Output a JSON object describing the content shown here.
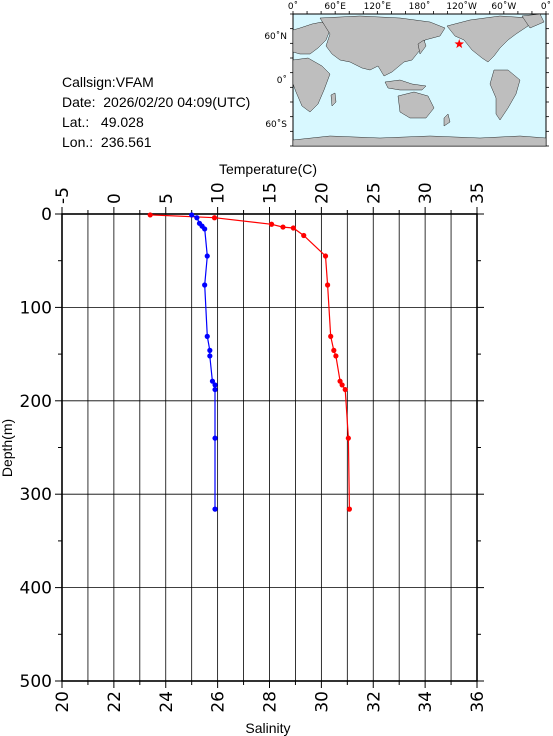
{
  "station": {
    "callsign_label": "Callsign:",
    "callsign": "VFAM",
    "date_label": "Date:",
    "date": "2026/02/20 04:09(UTC)",
    "lat_label": "Lat.:",
    "lat": "49.028",
    "lon_label": "Lon.:",
    "lon": "236.561"
  },
  "map": {
    "lon_labels": [
      "0˚",
      "60˚E",
      "120˚E",
      "180˚",
      "120˚W",
      "60˚W",
      "0˚"
    ],
    "lat_labels": [
      "60˚N",
      "0˚",
      "60˚S"
    ],
    "ocean_color": "#d8f8ff",
    "land_color": "#bebebe",
    "marker_icon": "star-icon",
    "marker_color": "#ff0000",
    "marker_lat": 49.028,
    "marker_lon": 236.561
  },
  "chart_data": {
    "type": "line",
    "ylabel": "Depth(m)",
    "x_top_label": "Temperature(C)",
    "x_bottom_label": "Salinity",
    "ylim": [
      0,
      500
    ],
    "y_ticks": [
      0,
      100,
      200,
      300,
      400,
      500
    ],
    "temp_lim": [
      -5,
      35
    ],
    "temp_ticks": [
      -5,
      0,
      5,
      10,
      15,
      20,
      25,
      30,
      35
    ],
    "sal_lim": [
      20,
      36
    ],
    "sal_ticks": [
      20,
      22,
      24,
      26,
      28,
      30,
      32,
      34,
      36
    ],
    "grid": true,
    "series": [
      {
        "axis": "temperature",
        "color": "#ff0000",
        "points": [
          [
            3.5,
            1
          ],
          [
            9.7,
            4
          ],
          [
            15.2,
            11
          ],
          [
            16.3,
            14
          ],
          [
            17.3,
            15
          ],
          [
            18.3,
            23
          ],
          [
            20.4,
            45
          ],
          [
            20.6,
            76
          ],
          [
            20.9,
            131
          ],
          [
            21.2,
            146
          ],
          [
            21.4,
            152
          ],
          [
            21.8,
            179
          ],
          [
            22.0,
            183
          ],
          [
            22.3,
            188
          ],
          [
            22.6,
            240
          ],
          [
            22.7,
            316
          ]
        ]
      },
      {
        "axis": "salinity",
        "color": "#0000ff",
        "points": [
          [
            25.0,
            1
          ],
          [
            25.2,
            4
          ],
          [
            25.3,
            10
          ],
          [
            25.4,
            13
          ],
          [
            25.5,
            16
          ],
          [
            25.6,
            45
          ],
          [
            25.5,
            76
          ],
          [
            25.6,
            131
          ],
          [
            25.7,
            146
          ],
          [
            25.7,
            152
          ],
          [
            25.8,
            179
          ],
          [
            25.9,
            183
          ],
          [
            25.9,
            188
          ],
          [
            25.9,
            240
          ],
          [
            25.9,
            316
          ]
        ]
      }
    ]
  }
}
